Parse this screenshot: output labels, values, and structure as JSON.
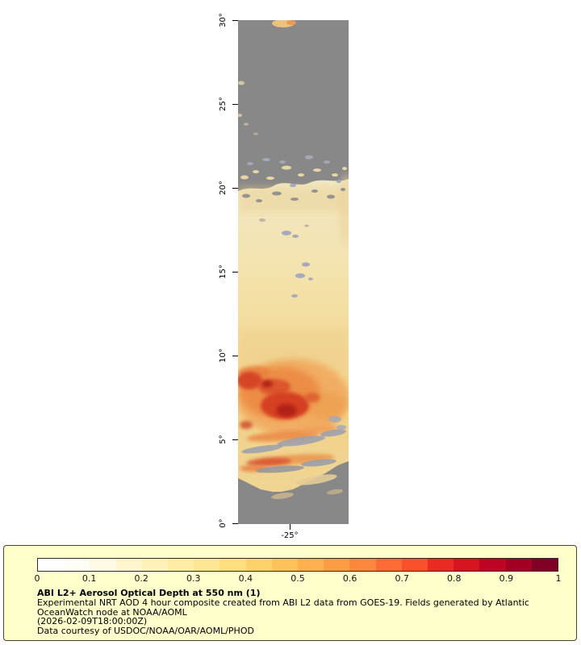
{
  "figure": {
    "map": {
      "lat_ticks": [
        "30°",
        "25°",
        "20°",
        "15°",
        "10°",
        "5°",
        "0°"
      ],
      "lat_tick_spacing_px": 104,
      "lon_tick_label": "-25°"
    },
    "colorbar": {
      "tick_labels": [
        "0",
        "0.1",
        "0.2",
        "0.3",
        "0.4",
        "0.5",
        "0.6",
        "0.7",
        "0.8",
        "0.9",
        "1"
      ],
      "colors": [
        "#ffffff",
        "#fffdf5",
        "#fffae5",
        "#fff6d0",
        "#fff2bb",
        "#ffeda6",
        "#fee792",
        "#fede7e",
        "#fed26b",
        "#fec25b",
        "#feb14e",
        "#fd9c44",
        "#fd873c",
        "#fc6b33",
        "#f94f2b",
        "#ea2b24",
        "#d81420",
        "#c00425",
        "#a30026",
        "#800026"
      ],
      "panel_background": "#ffffcc"
    },
    "caption": {
      "title": "ABI L2+ Aerosol Optical Depth at 550 nm (1)",
      "lines": [
        "Experimental NRT AOD 4 hour composite created from ABI L2 data from GOES-19. Fields generated by Atlantic",
        "OceanWatch node at NOAA/AOML",
        "(2026-02-09T18:00:00Z)",
        "Data courtesy of USDOC/NOAA/OAR/AOML/PHOD"
      ]
    }
  },
  "chart_data": {
    "type": "heatmap",
    "title": "ABI L2+ Aerosol Optical Depth at 550 nm (1)",
    "variable": "Aerosol Optical Depth (AOD) at 550 nm",
    "source_text": "Experimental NRT AOD 4 hour composite created from ABI L2 data from GOES-19. Fields generated by Atlantic OceanWatch node at NOAA/AOML",
    "timestamp_shown": "2026-02-09T18:00:00Z",
    "credit": "Data courtesy of USDOC/NOAA/OAR/AOML/PHOD",
    "y_axis": {
      "meaning": "latitude",
      "tick_labels": [
        "0°",
        "5°",
        "10°",
        "15°",
        "20°",
        "25°",
        "30°"
      ],
      "range": [
        0,
        30
      ],
      "orientation": "vertical, 30° at top"
    },
    "x_axis": {
      "meaning": "longitude",
      "tick_labels": [
        "-25°"
      ]
    },
    "colorbar": {
      "range": [
        0,
        1
      ],
      "tick_labels": [
        "0",
        "0.1",
        "0.2",
        "0.3",
        "0.4",
        "0.5",
        "0.6",
        "0.7",
        "0.8",
        "0.9",
        "1"
      ],
      "colormap": "white → pale yellow → yellow → orange → red → dark red",
      "no_data_color": "gray"
    },
    "regions": [
      {
        "lat_range": [
          21.5,
          30
        ],
        "aod": null,
        "note": "gray: no retrieval / cloud; small tan specks near 25°–27° at left edge and at 30° top edge"
      },
      {
        "lat_range": [
          10,
          21.5
        ],
        "aod_approx": 0.2,
        "note": "pale yellow background aerosol ~0.15–0.3; scattered blue-gray cloud specks near 15°–17°; speckled gray/tan transition band near 20°–21°"
      },
      {
        "lat_range": [
          5,
          10
        ],
        "aod_approx": 0.6,
        "note": "Saharan dust plume: broad orange ~0.4–0.6 with red cores ~0.7–0.9 centered near 6°–9°; orange streaks and gray cloud bands near 5°–6°"
      },
      {
        "lat_range": [
          0,
          4.5
        ],
        "aod": null,
        "note": "gray: no retrieval / cloud with thin tan streaks near 3°–4°"
      }
    ],
    "grid": false,
    "legend_position": "bottom panel with colorbar"
  }
}
